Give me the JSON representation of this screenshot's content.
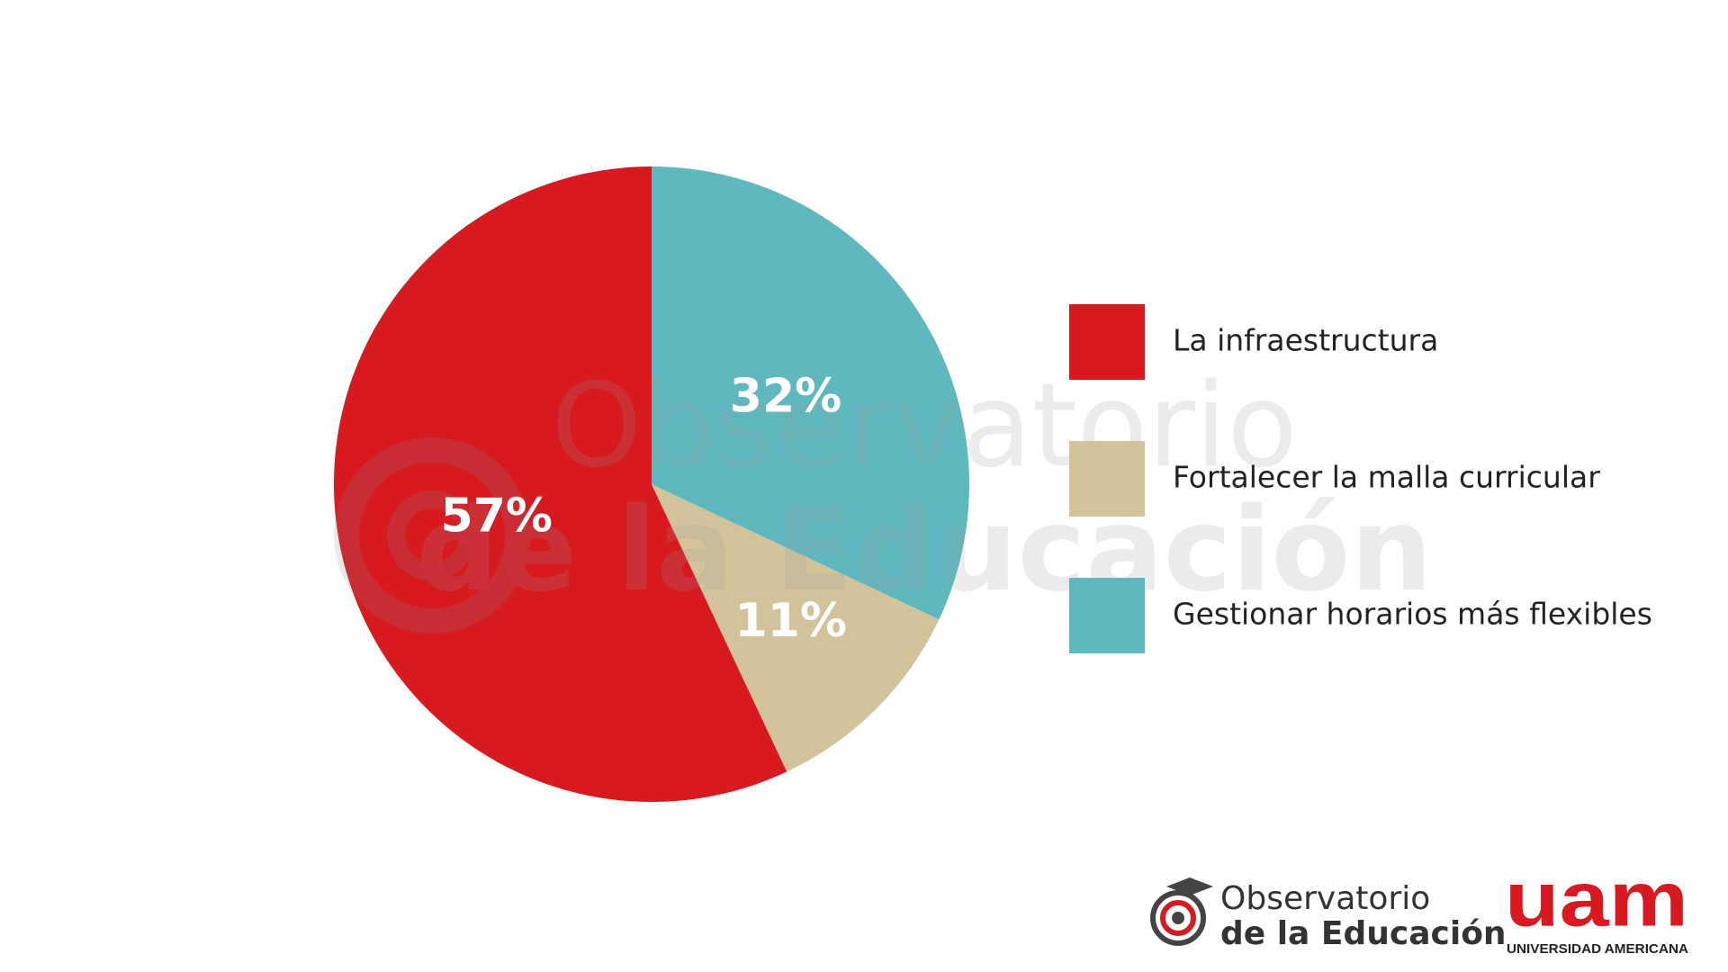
{
  "chart_data": {
    "type": "pie",
    "categories": [
      "La infraestructura",
      "Fortalecer la malla curricular",
      "Gestionar horarios más flexibles"
    ],
    "values": [
      57,
      11,
      32
    ],
    "value_labels": [
      "57%",
      "11%",
      "32%"
    ],
    "colors": [
      "#d71920",
      "#d3c39b",
      "#5fb8bf"
    ],
    "legend": "right"
  },
  "watermark": {
    "line1": "Observatorio",
    "line2": "de la Educación"
  },
  "logos": {
    "observatorio": {
      "line1": "Observatorio",
      "line2": "de la Educación"
    },
    "uam": {
      "mark": "uam",
      "name": "UNIVERSIDAD AMERICANA"
    }
  }
}
